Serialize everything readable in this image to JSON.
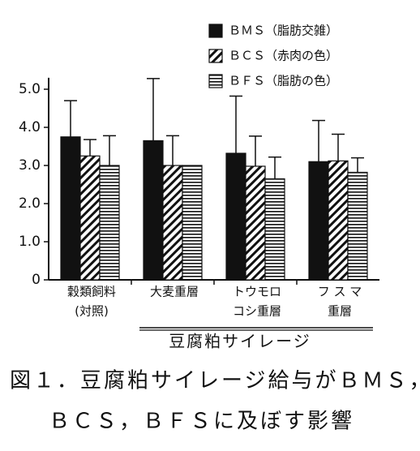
{
  "chart_data": {
    "type": "bar",
    "categories": [
      [
        "穀類飼料",
        "(対照)"
      ],
      [
        "大麦重層"
      ],
      [
        "トウモロ",
        "コシ重層"
      ],
      [
        "フ ス マ",
        "重層"
      ]
    ],
    "group_label": "豆腐粕サイレージ",
    "caption": [
      "図１．豆腐粕サイレージ給与がＢＭＳ，",
      "ＢＣＳ，ＢＦＳに及ぼす影響"
    ],
    "series": [
      {
        "name": "ＢＭＳ（脂肪交雑）",
        "color": "#111111",
        "pattern": "solid",
        "values": [
          3.75,
          3.65,
          3.32,
          3.1
        ],
        "errors": [
          0.95,
          1.63,
          1.5,
          1.08
        ]
      },
      {
        "name": "ＢＣＳ（赤肉の色）",
        "color": "#111111",
        "pattern": "diagonal",
        "values": [
          3.25,
          3.0,
          2.98,
          3.12
        ],
        "errors": [
          0.43,
          0.78,
          0.79,
          0.7
        ]
      },
      {
        "name": "ＢＦＳ（脂肪の色）",
        "color": "#111111",
        "pattern": "horizontal",
        "values": [
          3.0,
          3.0,
          2.65,
          2.82
        ],
        "errors": [
          0.78,
          null,
          0.57,
          0.38
        ]
      }
    ],
    "ylim": [
      0,
      5.3
    ],
    "yticks": [
      0,
      {
        "value": 1,
        "label": "1.0"
      },
      {
        "value": 2,
        "label": "2.0"
      },
      {
        "value": 3,
        "label": "3.0"
      },
      {
        "value": 4,
        "label": "4.0"
      },
      {
        "value": 5,
        "label": "5.0"
      }
    ],
    "legend": "upper right",
    "grid": false
  }
}
